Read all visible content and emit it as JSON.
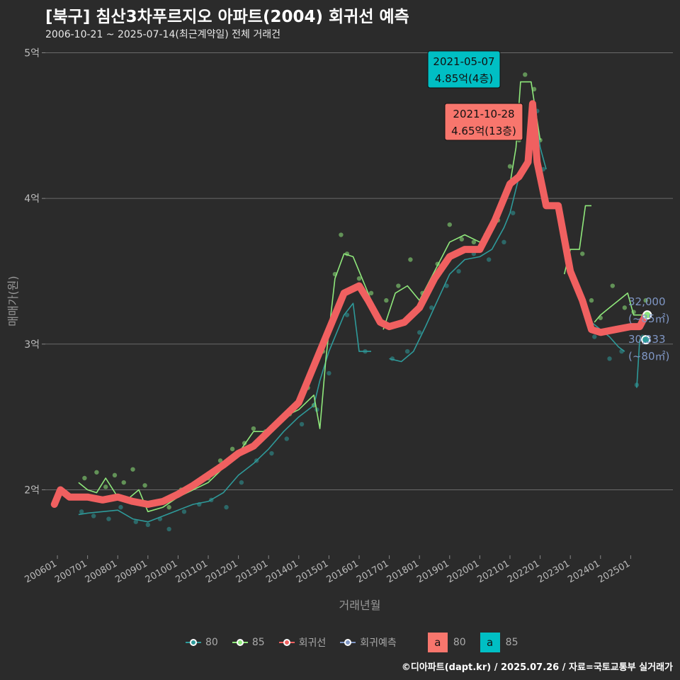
{
  "title": "[북구] 침산3차푸르지오 아파트(2004) 회귀선 예측",
  "subtitle": "2006-10-21 ~ 2025-07-14(최근계약일) 전체 거래건",
  "caption": "©디아파트(dapt.kr) / 2025.07.26 / 자료=국토교통부 실거래가",
  "colors": {
    "background": "#2b2b2b",
    "grid": "#6a6a6a",
    "s80": "#2e9a9a",
    "s85": "#8fe87b",
    "regression": "#f06060",
    "forecast": "#7f96c4",
    "box80": "#f8766d",
    "box85": "#00bfc4"
  },
  "legend": {
    "items": [
      {
        "key": "80",
        "label": "80",
        "color": "#2e9a9a"
      },
      {
        "key": "85",
        "label": "85",
        "color": "#8fe87b"
      },
      {
        "key": "reg",
        "label": "회귀선",
        "color": "#f06060"
      },
      {
        "key": "fc",
        "label": "회귀예측",
        "color": "#7f96c4"
      }
    ],
    "box_letter": "a",
    "boxes": [
      {
        "label": "80",
        "color": "#f8766d"
      },
      {
        "label": "85",
        "color": "#00bfc4"
      }
    ]
  },
  "chart_data": {
    "type": "line",
    "title": "[북구] 침산3차푸르지오 아파트(2004) 회귀선 예측",
    "xlabel": "거래년월",
    "ylabel": "매매가(원)",
    "xlim": [
      2005.6,
      2026.4
    ],
    "ylim": [
      1.55,
      5.08
    ],
    "x_ticks": [
      {
        "value": 2006.0,
        "label": "200601"
      },
      {
        "value": 2007.0,
        "label": "200701"
      },
      {
        "value": 2008.0,
        "label": "200801"
      },
      {
        "value": 2009.0,
        "label": "200901"
      },
      {
        "value": 2010.0,
        "label": "201001"
      },
      {
        "value": 2011.0,
        "label": "201101"
      },
      {
        "value": 2012.0,
        "label": "201201"
      },
      {
        "value": 2013.0,
        "label": "201301"
      },
      {
        "value": 2014.0,
        "label": "201401"
      },
      {
        "value": 2015.0,
        "label": "201501"
      },
      {
        "value": 2016.0,
        "label": "201601"
      },
      {
        "value": 2017.0,
        "label": "201701"
      },
      {
        "value": 2018.0,
        "label": "201801"
      },
      {
        "value": 2019.0,
        "label": "201901"
      },
      {
        "value": 2020.0,
        "label": "202001"
      },
      {
        "value": 2021.0,
        "label": "202101"
      },
      {
        "value": 2022.0,
        "label": "202201"
      },
      {
        "value": 2023.0,
        "label": "202301"
      },
      {
        "value": 2024.0,
        "label": "202401"
      },
      {
        "value": 2025.0,
        "label": "202501"
      }
    ],
    "y_ticks": [
      {
        "value": 2,
        "label": "2억"
      },
      {
        "value": 3,
        "label": "3억"
      },
      {
        "value": 4,
        "label": "4억"
      },
      {
        "value": 5,
        "label": "5억"
      }
    ],
    "series": [
      {
        "name": "80",
        "x": [
          2006.7,
          2007.0,
          2007.5,
          2008.0,
          2008.5,
          2009.0,
          2009.5,
          2010.0,
          2010.5,
          2011.0,
          2011.5,
          2012.0,
          2012.5,
          2013.0,
          2013.5,
          2014.0,
          2014.5,
          2014.7,
          2015.0,
          2015.5,
          2015.8,
          2016.0,
          2016.4
        ],
        "values": [
          1.83,
          1.84,
          1.85,
          1.86,
          1.8,
          1.78,
          1.82,
          1.86,
          1.9,
          1.92,
          1.98,
          2.1,
          2.18,
          2.28,
          2.4,
          2.5,
          2.58,
          2.75,
          2.95,
          3.2,
          3.28,
          2.95,
          2.95
        ]
      },
      {
        "name": "80",
        "x": [
          2017.0,
          2017.4,
          2017.8,
          2018.2,
          2018.6,
          2019.0,
          2019.5,
          2020.0,
          2020.4,
          2020.8,
          2021.0,
          2021.3,
          2021.6,
          2021.8,
          2022.0,
          2022.2
        ],
        "values": [
          2.9,
          2.88,
          2.95,
          3.12,
          3.3,
          3.48,
          3.58,
          3.6,
          3.65,
          3.8,
          3.9,
          4.15,
          4.25,
          4.65,
          4.35,
          4.2
        ]
      },
      {
        "name": "80",
        "x": [
          2023.7,
          2024.0,
          2024.3,
          2024.6,
          2024.8
        ],
        "values": [
          3.15,
          3.1,
          3.05,
          2.98,
          2.95
        ]
      },
      {
        "name": "80",
        "x": [
          2025.2,
          2025.3,
          2025.5
        ],
        "values": [
          2.7,
          3.03,
          3.03
        ]
      },
      {
        "name": "85",
        "x": [
          2006.7,
          2007.0,
          2007.3,
          2007.6,
          2008.0,
          2008.3,
          2008.7,
          2009.0,
          2009.5,
          2010.0,
          2010.5,
          2011.0,
          2011.5,
          2012.0,
          2012.5,
          2013.0,
          2013.5,
          2014.0,
          2014.5,
          2014.7,
          2014.9,
          2015.2,
          2015.5,
          2015.8,
          2016.2,
          2016.5
        ],
        "values": [
          2.05,
          2.0,
          1.98,
          2.08,
          1.95,
          1.93,
          2.0,
          1.85,
          1.88,
          1.95,
          2.0,
          2.05,
          2.15,
          2.25,
          2.4,
          2.4,
          2.5,
          2.55,
          2.65,
          2.42,
          2.9,
          3.45,
          3.62,
          3.6,
          3.4,
          3.25
        ]
      },
      {
        "name": "85",
        "x": [
          2016.8,
          2017.2,
          2017.6,
          2018.0,
          2018.5,
          2019.0,
          2019.5,
          2020.0,
          2020.3,
          2020.7,
          2021.0,
          2021.2,
          2021.35,
          2021.7,
          2022.0
        ],
        "values": [
          3.1,
          3.35,
          3.4,
          3.3,
          3.5,
          3.7,
          3.75,
          3.7,
          3.75,
          3.9,
          4.1,
          4.35,
          4.8,
          4.8,
          4.4
        ]
      },
      {
        "name": "85",
        "x": [
          2022.8,
          2023.0,
          2023.3,
          2023.5,
          2023.7
        ],
        "values": [
          3.48,
          3.65,
          3.65,
          3.95,
          3.95
        ]
      },
      {
        "name": "85",
        "x": [
          2023.8,
          2024.0,
          2024.3,
          2024.6,
          2024.9,
          2025.1,
          2025.3,
          2025.5
        ],
        "values": [
          3.15,
          3.2,
          3.25,
          3.3,
          3.35,
          3.2,
          3.2,
          3.2
        ]
      },
      {
        "name": "회귀선",
        "x": [
          2005.9,
          2006.1,
          2006.4,
          2006.7,
          2007.0,
          2007.5,
          2008.0,
          2008.5,
          2009.0,
          2009.5,
          2010.0,
          2010.5,
          2011.0,
          2011.5,
          2012.0,
          2012.5,
          2013.0,
          2013.5,
          2014.0,
          2014.5,
          2015.0,
          2015.5,
          2015.8,
          2016.0,
          2016.3,
          2016.7,
          2017.0,
          2017.5,
          2018.0,
          2018.5,
          2019.0,
          2019.5,
          2020.0,
          2020.5,
          2021.0,
          2021.3,
          2021.6,
          2021.75,
          2021.9,
          2022.2,
          2022.6,
          2023.0,
          2023.4,
          2023.7,
          2024.0,
          2024.5,
          2025.0,
          2025.3,
          2025.5
        ],
        "values": [
          1.9,
          2.0,
          1.95,
          1.95,
          1.95,
          1.93,
          1.95,
          1.92,
          1.9,
          1.92,
          1.97,
          2.03,
          2.1,
          2.17,
          2.25,
          2.3,
          2.4,
          2.5,
          2.6,
          2.85,
          3.1,
          3.35,
          3.38,
          3.4,
          3.3,
          3.15,
          3.12,
          3.15,
          3.25,
          3.45,
          3.6,
          3.65,
          3.65,
          3.85,
          4.1,
          4.15,
          4.25,
          4.65,
          4.25,
          3.95,
          3.95,
          3.5,
          3.3,
          3.1,
          3.08,
          3.1,
          3.12,
          3.12,
          3.2
        ]
      }
    ],
    "scatter_80": {
      "x": [
        2006.8,
        2007.2,
        2007.7,
        2008.1,
        2008.6,
        2009.0,
        2009.4,
        2009.7,
        2010.2,
        2010.7,
        2011.1,
        2011.6,
        2012.1,
        2012.6,
        2013.1,
        2013.6,
        2014.1,
        2014.6,
        2015.0,
        2015.3,
        2015.6,
        2016.2,
        2017.1,
        2017.6,
        2018.0,
        2018.4,
        2018.9,
        2019.3,
        2019.8,
        2020.3,
        2020.8,
        2021.1,
        2021.5,
        2021.9,
        2022.1,
        2023.8,
        2024.3,
        2024.7,
        2025.2,
        2025.4
      ],
      "values": [
        1.85,
        1.82,
        1.8,
        1.88,
        1.78,
        1.76,
        1.8,
        1.73,
        1.85,
        1.9,
        1.93,
        1.88,
        2.05,
        2.2,
        2.25,
        2.35,
        2.45,
        2.55,
        2.8,
        3.25,
        3.2,
        2.95,
        2.9,
        2.95,
        3.08,
        3.25,
        3.4,
        3.5,
        3.62,
        3.58,
        3.7,
        3.9,
        4.2,
        4.6,
        4.2,
        3.05,
        2.9,
        2.95,
        2.72,
        3.05
      ]
    },
    "scatter_85": {
      "x": [
        2006.9,
        2007.3,
        2007.6,
        2007.9,
        2008.2,
        2008.5,
        2008.9,
        2009.3,
        2009.7,
        2010.1,
        2010.6,
        2011.0,
        2011.4,
        2011.8,
        2012.2,
        2012.5,
        2012.9,
        2013.3,
        2013.7,
        2014.0,
        2014.3,
        2014.5,
        2014.8,
        2015.2,
        2015.4,
        2015.6,
        2016.0,
        2016.4,
        2016.9,
        2017.3,
        2017.7,
        2018.1,
        2018.6,
        2019.0,
        2019.4,
        2019.8,
        2020.2,
        2020.6,
        2021.0,
        2021.3,
        2021.5,
        2021.8,
        2022.0,
        2023.0,
        2023.4,
        2023.7,
        2024.0,
        2024.4,
        2024.8,
        2025.1,
        2025.5
      ],
      "values": [
        2.08,
        2.12,
        2.02,
        2.1,
        2.05,
        2.14,
        2.03,
        1.92,
        1.88,
        2.0,
        2.05,
        2.08,
        2.2,
        2.28,
        2.32,
        2.42,
        2.4,
        2.45,
        2.52,
        2.62,
        2.7,
        2.58,
        2.95,
        3.48,
        3.75,
        3.62,
        3.45,
        3.35,
        3.3,
        3.4,
        3.58,
        3.35,
        3.55,
        3.82,
        3.72,
        3.7,
        3.75,
        3.85,
        4.22,
        4.4,
        4.85,
        4.75,
        4.4,
        3.5,
        3.62,
        3.3,
        3.18,
        3.4,
        3.25,
        3.22,
        3.3
      ]
    },
    "annotations": [
      {
        "date": "2021-05-07",
        "price": "4.85억(4층)",
        "x": 2021.35,
        "y": 4.85,
        "color": "#00bfc4"
      },
      {
        "date": "2021-10-28",
        "price": "4.65억(13층)",
        "x": 2021.82,
        "y": 4.65,
        "color": "#f8766d"
      }
    ],
    "forecast_labels": [
      {
        "value": "32,000",
        "area": "(~85㎡)",
        "x": 2025.55,
        "y": 3.2,
        "color": "#8fe87b"
      },
      {
        "value": "30,333",
        "area": "(~80㎡)",
        "x": 2025.5,
        "y": 3.03,
        "color": "#2e9a9a"
      }
    ]
  }
}
